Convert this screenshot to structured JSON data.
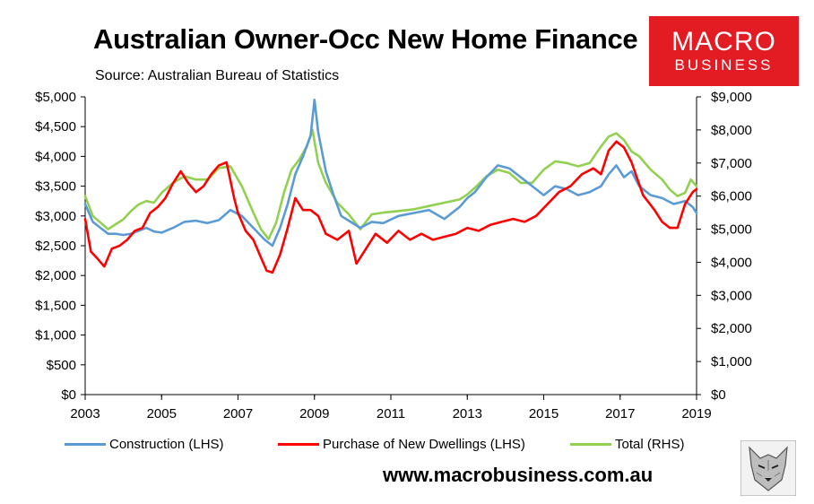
{
  "header": {
    "title": "Australian Owner-Occ New Home Finance",
    "subtitle": "Source: Australian Bureau of Statistics"
  },
  "logo": {
    "line1": "MACRO",
    "line2": "BUSINESS"
  },
  "footer": {
    "url": "www.macrobusiness.com.au"
  },
  "colors": {
    "construction": "#5b9bd5",
    "purchase": "#ff0000",
    "total": "#92d050",
    "logo_bg": "#e31b23"
  },
  "chart_data": {
    "type": "line",
    "title": "Australian Owner-Occ New Home Finance",
    "subtitle": "Source: Australian Bureau of Statistics",
    "xlim": [
      2003,
      2019
    ],
    "x_ticks": [
      "2003",
      "2005",
      "2007",
      "2009",
      "2011",
      "2013",
      "2015",
      "2017",
      "2019"
    ],
    "y_left": {
      "range": [
        0,
        5000
      ],
      "ticks": [
        "$0",
        "$500",
        "$1,000",
        "$1,500",
        "$2,000",
        "$2,500",
        "$3,000",
        "$3,500",
        "$4,000",
        "$4,500",
        "$5,000"
      ]
    },
    "y_right": {
      "range": [
        0,
        9000
      ],
      "ticks": [
        "$0",
        "$1,000",
        "$2,000",
        "$3,000",
        "$4,000",
        "$5,000",
        "$6,000",
        "$7,000",
        "$8,000",
        "$9,000"
      ]
    },
    "grid": "none",
    "legend_position": "bottom",
    "series": [
      {
        "name": "Construction (LHS)",
        "axis": "left",
        "x": [
          2003,
          2003.2,
          2003.4,
          2003.6,
          2003.8,
          2004,
          2004.2,
          2004.4,
          2004.6,
          2004.8,
          2005,
          2005.3,
          2005.6,
          2005.9,
          2006.2,
          2006.5,
          2006.8,
          2007.1,
          2007.4,
          2007.7,
          2007.9,
          2008.1,
          2008.3,
          2008.5,
          2008.7,
          2008.9,
          2009.0,
          2009.1,
          2009.3,
          2009.5,
          2009.7,
          2009.9,
          2010.2,
          2010.5,
          2010.8,
          2011.2,
          2011.6,
          2012,
          2012.4,
          2012.8,
          2013.0,
          2013.2,
          2013.5,
          2013.8,
          2014.1,
          2014.4,
          2014.7,
          2015.0,
          2015.3,
          2015.6,
          2015.9,
          2016.2,
          2016.5,
          2016.7,
          2016.9,
          2017.1,
          2017.3,
          2017.5,
          2017.8,
          2018.1,
          2018.4,
          2018.7,
          2018.9,
          2019.0
        ],
        "values": [
          3200,
          2900,
          2800,
          2700,
          2700,
          2680,
          2700,
          2750,
          2800,
          2740,
          2720,
          2800,
          2900,
          2920,
          2880,
          2930,
          3100,
          3000,
          2800,
          2600,
          2500,
          2800,
          3200,
          3700,
          4000,
          4350,
          4950,
          4400,
          3750,
          3350,
          3000,
          2920,
          2800,
          2900,
          2880,
          3000,
          3050,
          3100,
          2950,
          3150,
          3300,
          3400,
          3650,
          3850,
          3800,
          3650,
          3500,
          3350,
          3500,
          3450,
          3350,
          3400,
          3500,
          3700,
          3850,
          3650,
          3750,
          3500,
          3350,
          3300,
          3200,
          3250,
          3150,
          3050
        ]
      },
      {
        "name": "Purchase of New Dwellings (LHS)",
        "axis": "left",
        "x": [
          2003,
          2003.15,
          2003.3,
          2003.5,
          2003.7,
          2003.9,
          2004.1,
          2004.3,
          2004.5,
          2004.7,
          2004.9,
          2005.1,
          2005.3,
          2005.5,
          2005.7,
          2005.9,
          2006.1,
          2006.3,
          2006.5,
          2006.7,
          2006.9,
          2007.0,
          2007.2,
          2007.4,
          2007.6,
          2007.75,
          2007.9,
          2008.1,
          2008.3,
          2008.5,
          2008.7,
          2008.9,
          2009.1,
          2009.3,
          2009.6,
          2009.9,
          2010.1,
          2010.3,
          2010.6,
          2010.9,
          2011.2,
          2011.5,
          2011.8,
          2012.1,
          2012.4,
          2012.7,
          2013.0,
          2013.3,
          2013.6,
          2013.9,
          2014.2,
          2014.5,
          2014.8,
          2015.1,
          2015.4,
          2015.7,
          2016.0,
          2016.3,
          2016.5,
          2016.7,
          2016.9,
          2017.1,
          2017.3,
          2017.6,
          2017.9,
          2018.1,
          2018.3,
          2018.5,
          2018.7,
          2018.9,
          2019.0
        ],
        "values": [
          2950,
          2400,
          2300,
          2150,
          2450,
          2500,
          2600,
          2750,
          2800,
          3050,
          3150,
          3300,
          3550,
          3750,
          3550,
          3400,
          3500,
          3700,
          3850,
          3900,
          3300,
          3050,
          2750,
          2600,
          2300,
          2080,
          2050,
          2350,
          2800,
          3300,
          3100,
          3100,
          3000,
          2700,
          2600,
          2750,
          2200,
          2400,
          2700,
          2550,
          2750,
          2600,
          2700,
          2600,
          2650,
          2700,
          2800,
          2750,
          2850,
          2900,
          2950,
          2900,
          3000,
          3200,
          3400,
          3500,
          3700,
          3800,
          3700,
          4100,
          4250,
          4150,
          3900,
          3350,
          3100,
          2900,
          2800,
          2800,
          3200,
          3400,
          3450
        ]
      },
      {
        "name": "Total (RHS)",
        "axis": "right",
        "x": [
          2003,
          2003.2,
          2003.4,
          2003.6,
          2003.8,
          2004,
          2004.2,
          2004.4,
          2004.6,
          2004.8,
          2005.0,
          2005.3,
          2005.6,
          2005.9,
          2006.2,
          2006.5,
          2006.8,
          2007.1,
          2007.4,
          2007.6,
          2007.8,
          2008.0,
          2008.2,
          2008.4,
          2008.6,
          2008.8,
          2008.95,
          2009.1,
          2009.3,
          2009.6,
          2009.9,
          2010.2,
          2010.5,
          2010.8,
          2011.2,
          2011.6,
          2012.0,
          2012.4,
          2012.8,
          2013.0,
          2013.2,
          2013.5,
          2013.8,
          2014.1,
          2014.4,
          2014.7,
          2015.0,
          2015.3,
          2015.6,
          2015.9,
          2016.2,
          2016.5,
          2016.7,
          2016.9,
          2017.1,
          2017.3,
          2017.5,
          2017.8,
          2018.1,
          2018.3,
          2018.5,
          2018.7,
          2018.85,
          2019.0
        ],
        "values": [
          6000,
          5400,
          5200,
          5000,
          5150,
          5300,
          5550,
          5750,
          5850,
          5800,
          6100,
          6400,
          6600,
          6500,
          6500,
          6850,
          6900,
          6300,
          5500,
          5000,
          4700,
          5200,
          6100,
          6800,
          7100,
          7500,
          8000,
          7000,
          6400,
          5800,
          5450,
          5000,
          5450,
          5500,
          5550,
          5600,
          5700,
          5800,
          5900,
          6050,
          6250,
          6600,
          6800,
          6700,
          6400,
          6400,
          6800,
          7050,
          7000,
          6900,
          7000,
          7500,
          7800,
          7900,
          7700,
          7350,
          7200,
          6800,
          6500,
          6200,
          6000,
          6100,
          6500,
          6300
        ]
      }
    ]
  }
}
